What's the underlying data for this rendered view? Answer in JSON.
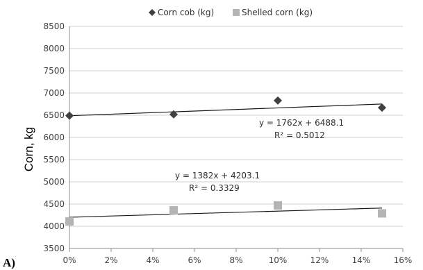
{
  "chart_data": {
    "type": "scatter",
    "panel_label": "A)",
    "title": "",
    "xlabel": "",
    "ylabel": "Corn, kg",
    "x_ticks": [
      "0%",
      "2%",
      "4%",
      "6%",
      "8%",
      "10%",
      "12%",
      "14%",
      "16%"
    ],
    "y_ticks": [
      "3500",
      "4000",
      "4500",
      "5000",
      "5500",
      "6000",
      "6500",
      "7000",
      "7500",
      "8000",
      "8500"
    ],
    "xlim": [
      0,
      0.16
    ],
    "ylim": [
      3500,
      8500
    ],
    "grid": "horizontal",
    "legend_position": "top",
    "series": [
      {
        "name": "Corn cob (kg)",
        "marker": "diamond",
        "color": "#404040",
        "x": [
          0,
          0.05,
          0.1,
          0.15
        ],
        "y": [
          6490,
          6520,
          6830,
          6670
        ],
        "trendline": {
          "slope": 1762,
          "intercept": 6488.1,
          "equation": "y = 1762x + 6488.1",
          "r2": "R² = 0.5012"
        }
      },
      {
        "name": "Shelled corn (kg)",
        "marker": "square",
        "color": "#b4b4b4",
        "x": [
          0,
          0.05,
          0.1,
          0.15
        ],
        "y": [
          4110,
          4360,
          4470,
          4290
        ],
        "trendline": {
          "slope": 1382,
          "intercept": 4203.1,
          "equation": "y = 1382x + 4203.1",
          "r2": "R² = 0.3329"
        }
      }
    ]
  }
}
